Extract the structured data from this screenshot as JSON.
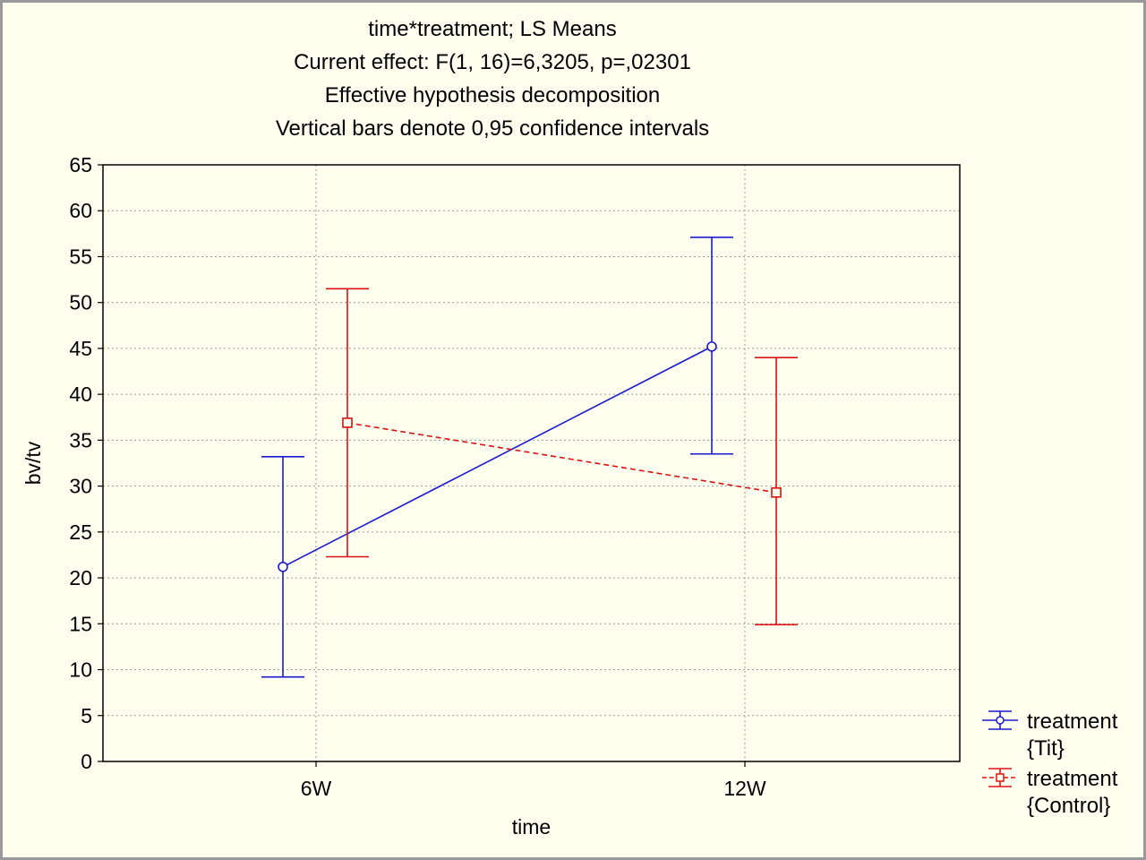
{
  "chart_data": {
    "type": "line",
    "title_lines": [
      "time*treatment; LS Means",
      "Current effect: F(1, 16)=6,3205, p=,02301",
      "Effective hypothesis decomposition",
      "Vertical bars denote 0,95 confidence intervals"
    ],
    "xlabel": "time",
    "ylabel": "bv/tv",
    "categories": [
      "6W",
      "12W"
    ],
    "ylim": [
      0,
      65
    ],
    "yticks": [
      0,
      5,
      10,
      15,
      20,
      25,
      30,
      35,
      40,
      45,
      50,
      55,
      60,
      65
    ],
    "grid": true,
    "legend_position": "bottom-right, outside plot",
    "series": [
      {
        "name": "treatment\n{Tit}",
        "legend_lines": [
          "treatment",
          "{Tit}"
        ],
        "color": "#1a1acc",
        "marker": "circle",
        "line_style": "solid",
        "values": [
          21.2,
          45.2
        ],
        "ci_lower": [
          9.2,
          33.5
        ],
        "ci_upper": [
          33.2,
          57.1
        ]
      },
      {
        "name": "treatment\n{Control}",
        "legend_lines": [
          "treatment",
          "{Control}"
        ],
        "color": "#dd1111",
        "marker": "square",
        "line_style": "dashed",
        "values": [
          36.9,
          29.3
        ],
        "ci_lower": [
          22.3,
          14.9
        ],
        "ci_upper": [
          51.5,
          44.0
        ]
      }
    ]
  }
}
